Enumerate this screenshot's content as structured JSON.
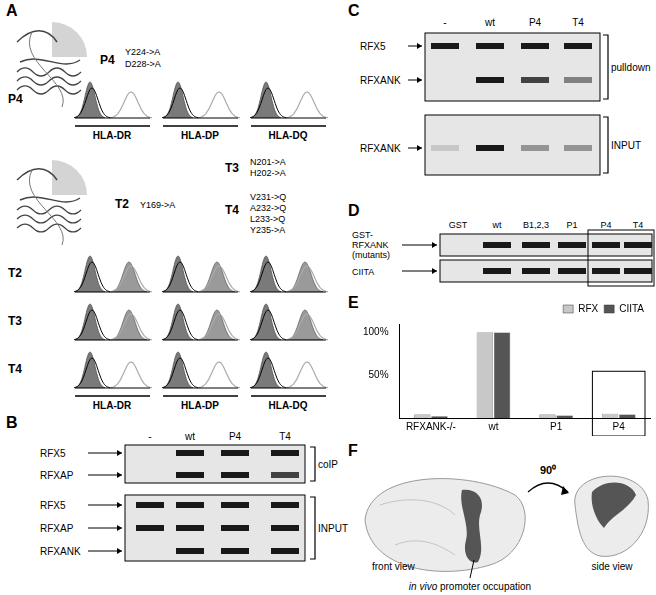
{
  "panels": {
    "A": {
      "label": "A",
      "top": {
        "mutant": "P4",
        "mutations": [
          "Y224->A",
          "D228->A"
        ]
      },
      "rows_top": [
        "P4"
      ],
      "bottom": {
        "mutants": [
          {
            "name": "T2",
            "mutations": [
              "Y169->A"
            ]
          },
          {
            "name": "T3",
            "mutations": [
              "N201->A",
              "H202->A"
            ]
          },
          {
            "name": "T4",
            "mutations": [
              "V231->Q",
              "A232->Q",
              "L233->Q",
              "Y235->A"
            ]
          }
        ]
      },
      "rows_bottom": [
        "T2",
        "T3",
        "T4"
      ],
      "x_labels": [
        "HLA-DR",
        "HLA-DP",
        "HLA-DQ"
      ]
    },
    "B": {
      "label": "B",
      "lanes": [
        "-",
        "wt",
        "P4",
        "T4"
      ],
      "groups": [
        {
          "name": "coIP",
          "rows": [
            "RFX5",
            "RFXAP"
          ]
        },
        {
          "name": "INPUT",
          "rows": [
            "RFX5",
            "RFXAP",
            "RFXANK"
          ]
        }
      ]
    },
    "C": {
      "label": "C",
      "lanes": [
        "-",
        "wt",
        "P4",
        "T4"
      ],
      "groups": [
        {
          "name": "pulldown",
          "rows": [
            "RFX5",
            "RFXANK"
          ]
        },
        {
          "name": "INPUT",
          "rows": [
            "RFXANK"
          ]
        }
      ]
    },
    "D": {
      "label": "D",
      "lanes": [
        "GST",
        "wt",
        "B1,2,3",
        "P1",
        "P4",
        "T4"
      ],
      "rows": [
        [
          "GST-",
          "RFXANK",
          "(mutants)"
        ],
        [
          "CIITA"
        ]
      ]
    },
    "E": {
      "label": "E"
    },
    "F": {
      "label": "F",
      "views": [
        "front view",
        "side view"
      ],
      "arrow_label": "90⁰",
      "annotation": {
        "italic": "in vivo",
        "text": " promoter occupation"
      }
    }
  },
  "chart_data": {
    "type": "bar",
    "categories": [
      "RFXANK-/-",
      "wt",
      "P1",
      "P4"
    ],
    "series": [
      {
        "name": "RFX",
        "color": "#c8c8c8",
        "values": [
          4,
          100,
          4,
          5
        ]
      },
      {
        "name": "CIITA",
        "color": "#555555",
        "values": [
          2,
          100,
          3,
          4
        ]
      }
    ],
    "ylim": [
      0,
      110
    ],
    "yticks": [
      {
        "value": 50,
        "label": "50%"
      },
      {
        "value": 100,
        "label": "100%"
      }
    ],
    "grid": false,
    "legend": "top-right"
  }
}
